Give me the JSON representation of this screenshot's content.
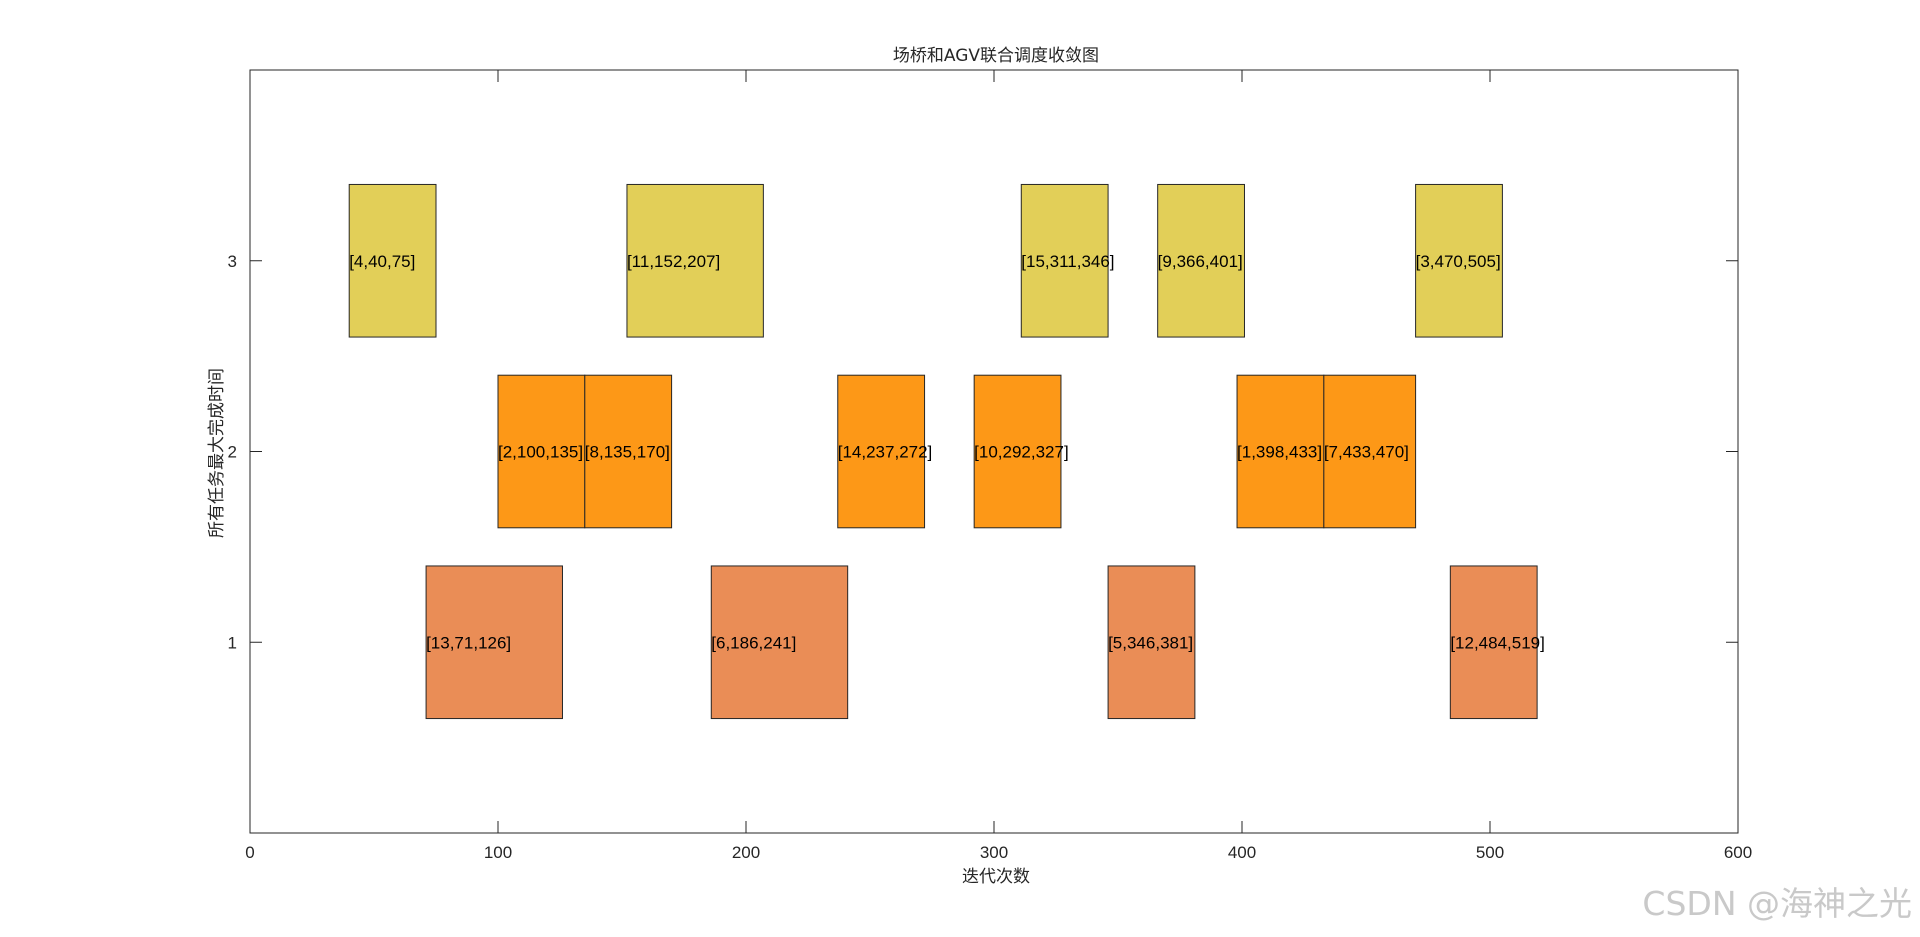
{
  "chart_data": {
    "type": "gantt",
    "title": "场桥和AGV联合调度收敛图",
    "xlabel": "迭代次数",
    "ylabel": "所有任务最大完成时间",
    "xlim": [
      0,
      600
    ],
    "ylim": [
      0,
      4
    ],
    "xticks": [
      0,
      100,
      200,
      300,
      400,
      500,
      600
    ],
    "yticks": [
      1,
      2,
      3
    ],
    "row_colors": {
      "1": "#ea8d56",
      "2": "#fd9817",
      "3": "#e2cf58"
    },
    "tasks": [
      {
        "row": 3,
        "start": 40,
        "end": 75,
        "label": "[4,40,75]"
      },
      {
        "row": 3,
        "start": 152,
        "end": 207,
        "label": "[11,152,207]"
      },
      {
        "row": 3,
        "start": 311,
        "end": 346,
        "label": "[15,311,346]"
      },
      {
        "row": 3,
        "start": 366,
        "end": 401,
        "label": "[9,366,401]"
      },
      {
        "row": 3,
        "start": 470,
        "end": 505,
        "label": "[3,470,505]"
      },
      {
        "row": 2,
        "start": 100,
        "end": 135,
        "label": "[2,100,135]"
      },
      {
        "row": 2,
        "start": 135,
        "end": 170,
        "label": "[8,135,170]"
      },
      {
        "row": 2,
        "start": 237,
        "end": 272,
        "label": "[14,237,272]"
      },
      {
        "row": 2,
        "start": 292,
        "end": 327,
        "label": "[10,292,327]"
      },
      {
        "row": 2,
        "start": 398,
        "end": 433,
        "label": "[1,398,433]"
      },
      {
        "row": 2,
        "start": 433,
        "end": 470,
        "label": "[7,433,470]"
      },
      {
        "row": 1,
        "start": 71,
        "end": 126,
        "label": "[13,71,126]"
      },
      {
        "row": 1,
        "start": 186,
        "end": 241,
        "label": "[6,186,241]"
      },
      {
        "row": 1,
        "start": 346,
        "end": 381,
        "label": "[5,346,381]"
      },
      {
        "row": 1,
        "start": 484,
        "end": 519,
        "label": "[12,484,519]"
      }
    ]
  },
  "watermark": "CSDN @海神之光"
}
